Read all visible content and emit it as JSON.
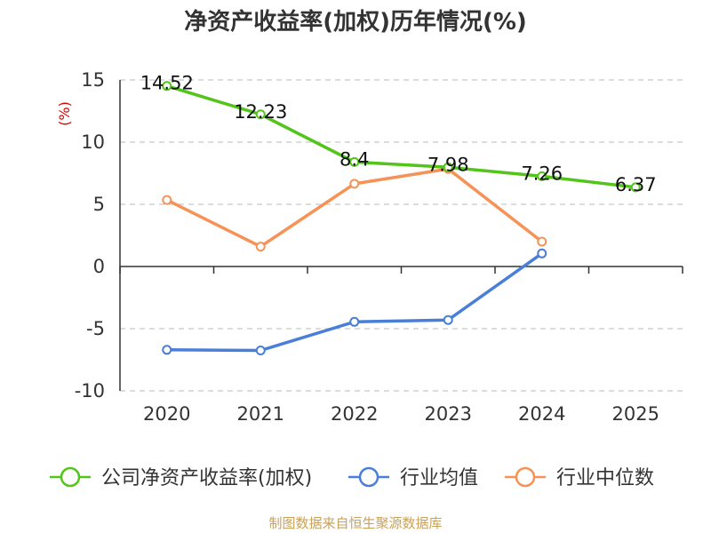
{
  "chart_data": {
    "type": "line",
    "title": "净资产收益率(加权)历年情况(%)",
    "ylabel": "(%)",
    "xlabel": "",
    "categories": [
      "2020",
      "2021",
      "2022",
      "2023",
      "2024",
      "2025"
    ],
    "ylim": [
      -10,
      15
    ],
    "yticks": [
      15,
      10,
      5,
      0,
      -5,
      -10
    ],
    "grid": true,
    "legend_position": "bottom",
    "series": [
      {
        "name": "公司净资产收益率(加权)",
        "color": "#52c41a",
        "values": [
          14.52,
          12.23,
          8.4,
          7.98,
          7.26,
          6.37
        ],
        "labels": [
          "14.52",
          "12.23",
          "8.4",
          "7.98",
          "7.26",
          "6.37"
        ]
      },
      {
        "name": "行业均值",
        "color": "#4a7fd9",
        "values": [
          -6.7,
          -6.75,
          -4.45,
          -4.3,
          1.05,
          null
        ]
      },
      {
        "name": "行业中位数",
        "color": "#f79256",
        "values": [
          5.35,
          1.6,
          6.65,
          7.85,
          2.0,
          null
        ]
      }
    ],
    "source": "制图数据来自恒生聚源数据库"
  }
}
